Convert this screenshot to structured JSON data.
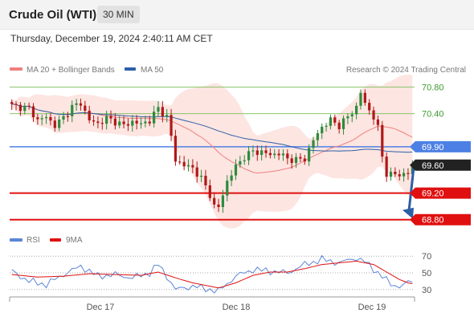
{
  "header": {
    "title": "Crude Oil (WTI)",
    "interval": "30 MIN"
  },
  "datetime": "Thursday, December 19, 2024 2:40:11 AM CET",
  "copyright": "Research © 2024 Trading Central",
  "legend": {
    "ma20": "MA 20 + Bollinger Bands",
    "ma50": "MA 50",
    "rsi": "RSI",
    "ma9": "9MA"
  },
  "colors": {
    "ma20": "#f08080",
    "ma50": "#2d5fa8",
    "band_fill": "#fde0dc",
    "bull": "#2e8b3e",
    "bear": "#b01818",
    "target": "#e01010",
    "pivot": "#4d80e4",
    "resistance": "#8cc56b",
    "current": "#222222",
    "arrow": "#2d5fa8",
    "rsi": "#5b86d6"
  },
  "chart_data": [
    {
      "type": "candlestick",
      "title": "Crude Oil (WTI)",
      "interval": "30 MIN",
      "ylim": [
        68.76,
        70.94
      ],
      "x_labels": [
        "Dec 17",
        "Dec 18",
        "Dec 19"
      ],
      "current_price": "69.60",
      "pivot": {
        "label": "69.90",
        "value": 69.9
      },
      "resistances": [
        {
          "label": "70.80",
          "value": 70.8
        },
        {
          "label": "70.40",
          "value": 70.4
        }
      ],
      "targets": [
        {
          "label": "69.20",
          "value": 69.2
        },
        {
          "label": "68.80",
          "value": 68.8
        }
      ],
      "close_path": [
        [
          0,
          70.52
        ],
        [
          4,
          70.48
        ],
        [
          6,
          70.3
        ],
        [
          8,
          70.35
        ],
        [
          10,
          70.22
        ],
        [
          12,
          70.34
        ],
        [
          14,
          70.5
        ],
        [
          16,
          70.56
        ],
        [
          18,
          70.3
        ],
        [
          20,
          70.25
        ],
        [
          22,
          70.33
        ],
        [
          24,
          70.28
        ],
        [
          26,
          70.22
        ],
        [
          28,
          70.28
        ],
        [
          30,
          70.24
        ],
        [
          32,
          70.3
        ],
        [
          34,
          70.48
        ],
        [
          36,
          70.35
        ],
        [
          37,
          70.05
        ],
        [
          38,
          69.7
        ],
        [
          40,
          69.62
        ],
        [
          42,
          69.58
        ],
        [
          44,
          69.42
        ],
        [
          46,
          69.18
        ],
        [
          47,
          69.0
        ],
        [
          48,
          68.98
        ],
        [
          50,
          69.38
        ],
        [
          52,
          69.6
        ],
        [
          54,
          69.75
        ],
        [
          56,
          69.83
        ],
        [
          58,
          69.82
        ],
        [
          60,
          69.78
        ],
        [
          62,
          69.8
        ],
        [
          64,
          69.72
        ],
        [
          66,
          69.7
        ],
        [
          68,
          69.72
        ],
        [
          70,
          70.0
        ],
        [
          72,
          70.2
        ],
        [
          74,
          70.3
        ],
        [
          76,
          70.22
        ],
        [
          78,
          70.35
        ],
        [
          80,
          70.5
        ],
        [
          81,
          70.72
        ],
        [
          82,
          70.55
        ],
        [
          84,
          70.35
        ],
        [
          85,
          70.18
        ],
        [
          86,
          69.75
        ],
        [
          87,
          69.5
        ],
        [
          88,
          69.48
        ],
        [
          90,
          69.48
        ],
        [
          92,
          69.5
        ],
        [
          93,
          69.6
        ]
      ],
      "rsi_ylim": [
        25,
        75
      ],
      "rsi_ticks": [
        30,
        50,
        70
      ],
      "rsi_path": [
        [
          0,
          52
        ],
        [
          4,
          40
        ],
        [
          8,
          36
        ],
        [
          12,
          48
        ],
        [
          16,
          58
        ],
        [
          20,
          46
        ],
        [
          24,
          48
        ],
        [
          28,
          44
        ],
        [
          32,
          50
        ],
        [
          34,
          60
        ],
        [
          36,
          46
        ],
        [
          38,
          30
        ],
        [
          42,
          34
        ],
        [
          46,
          30
        ],
        [
          48,
          28
        ],
        [
          52,
          46
        ],
        [
          56,
          54
        ],
        [
          60,
          52
        ],
        [
          64,
          50
        ],
        [
          68,
          60
        ],
        [
          72,
          66
        ],
        [
          76,
          62
        ],
        [
          80,
          68
        ],
        [
          82,
          63
        ],
        [
          86,
          46
        ],
        [
          88,
          36
        ],
        [
          90,
          34
        ],
        [
          92,
          38
        ],
        [
          93,
          40
        ]
      ],
      "rsi_ma_path": [
        [
          0,
          48
        ],
        [
          6,
          45
        ],
        [
          12,
          46
        ],
        [
          18,
          49
        ],
        [
          24,
          48
        ],
        [
          30,
          47
        ],
        [
          34,
          51
        ],
        [
          38,
          44
        ],
        [
          42,
          38
        ],
        [
          46,
          34
        ],
        [
          48,
          32
        ],
        [
          52,
          38
        ],
        [
          56,
          47
        ],
        [
          60,
          51
        ],
        [
          64,
          51
        ],
        [
          68,
          55
        ],
        [
          72,
          60
        ],
        [
          76,
          62
        ],
        [
          80,
          64
        ],
        [
          84,
          60
        ],
        [
          88,
          48
        ],
        [
          90,
          42
        ],
        [
          92,
          38
        ],
        [
          93,
          37
        ]
      ]
    }
  ]
}
